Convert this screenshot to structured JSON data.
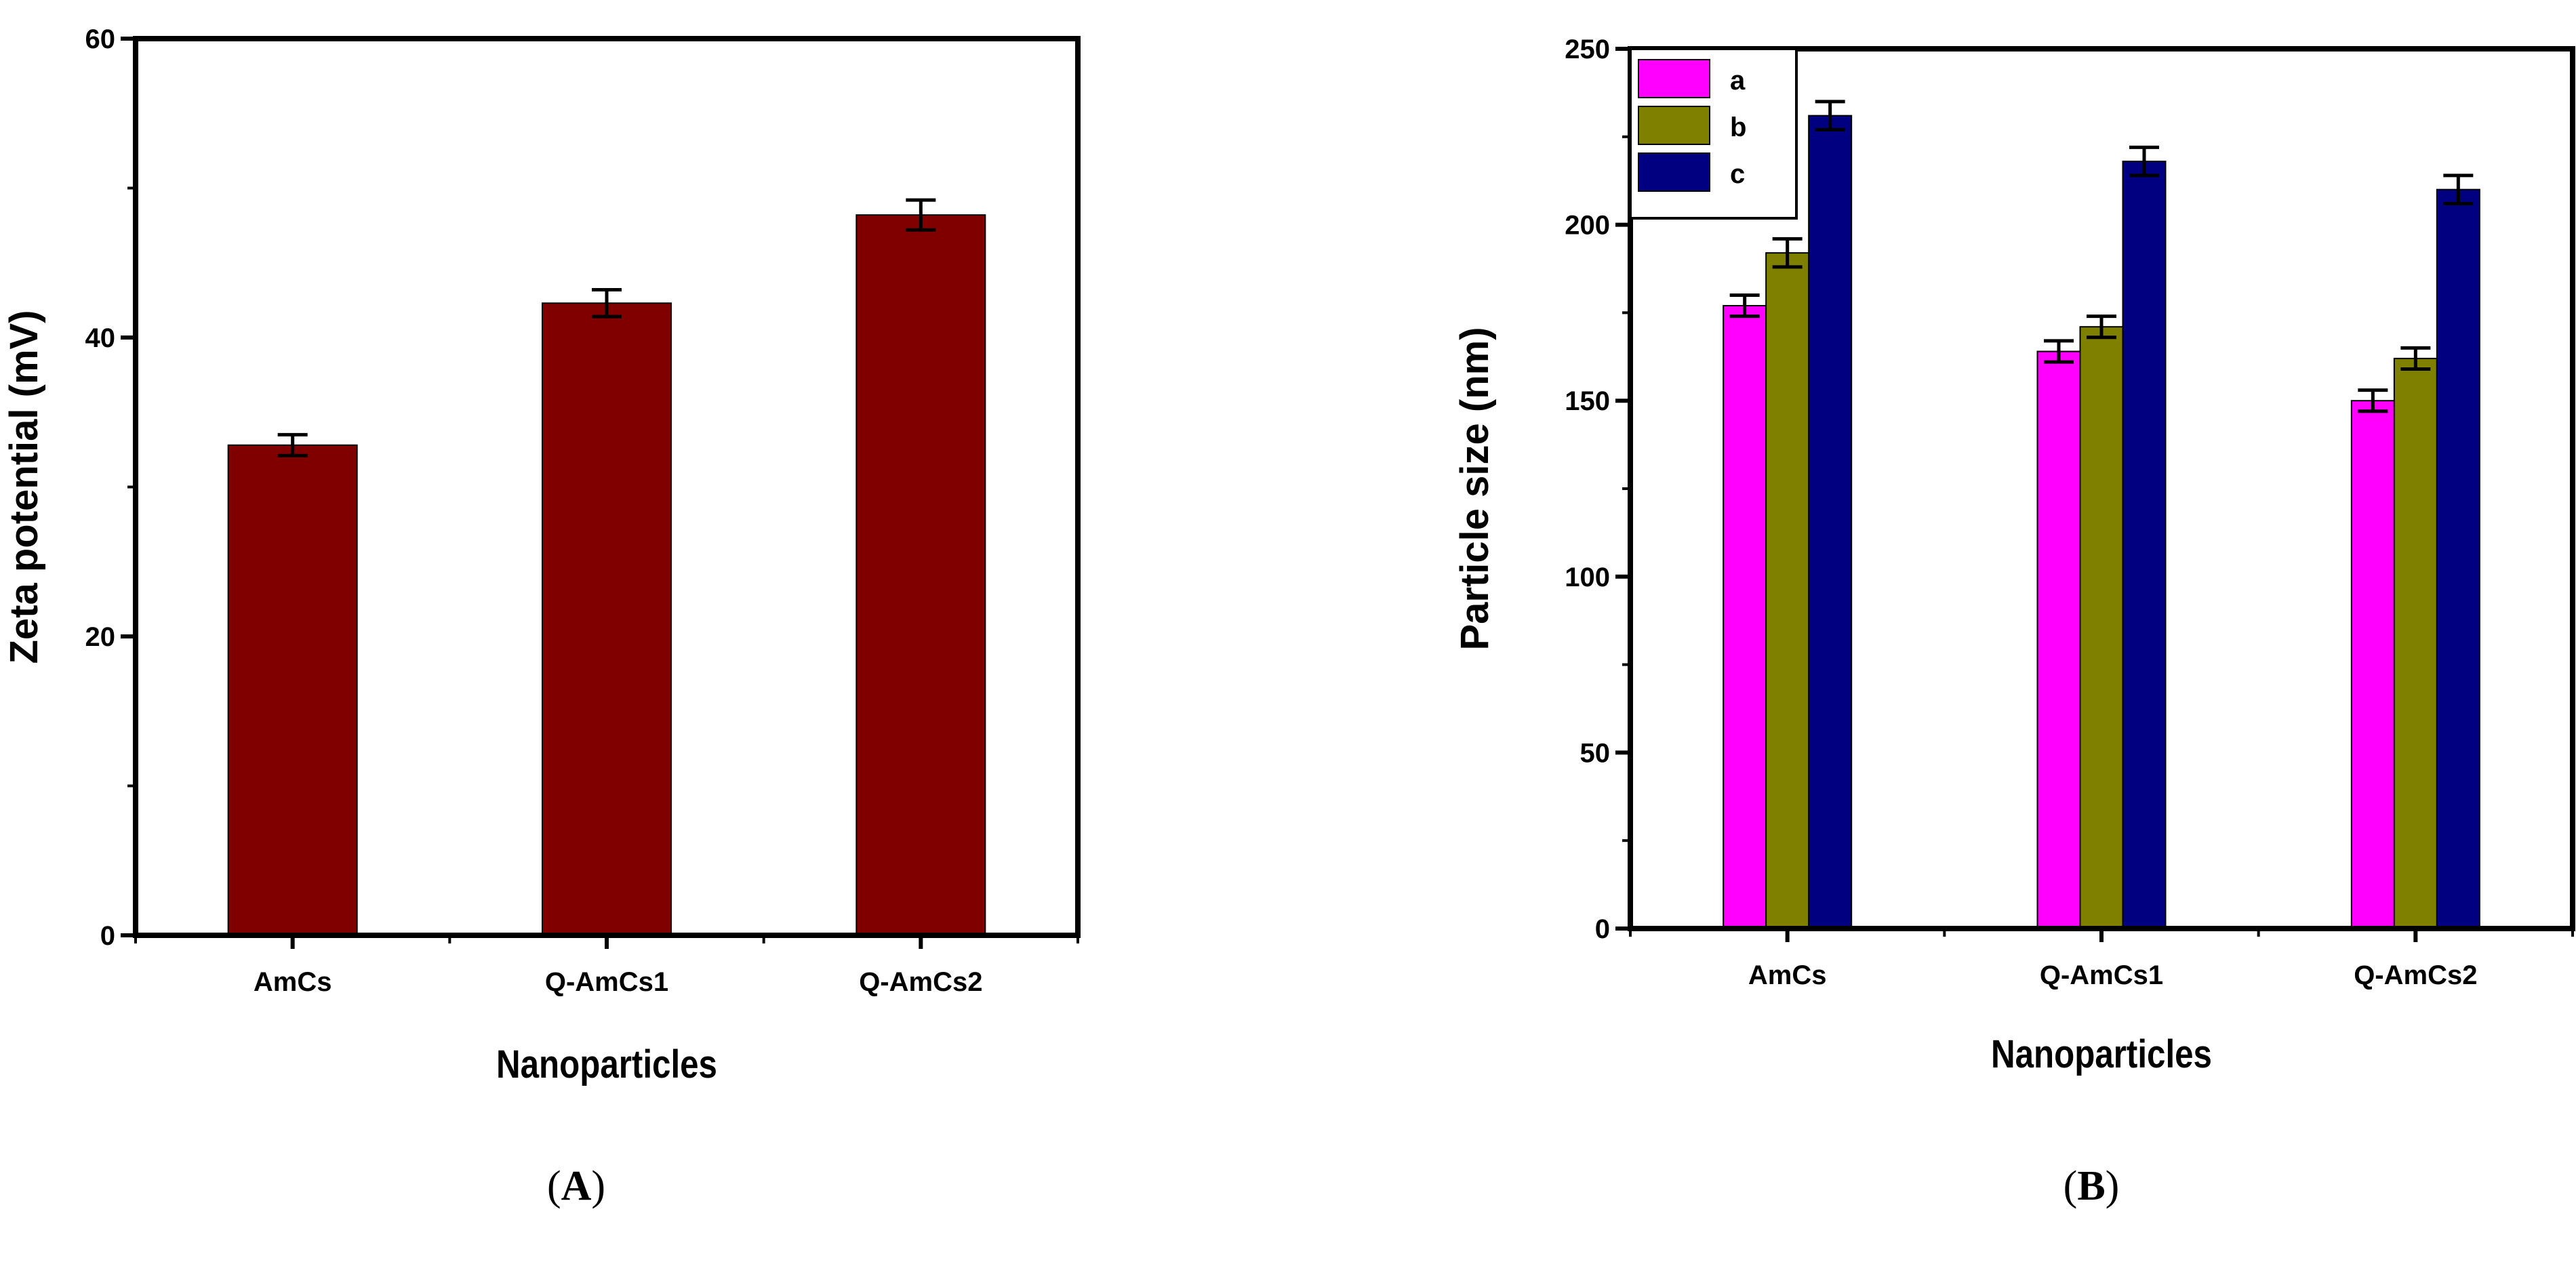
{
  "chart_data": [
    {
      "type": "bar",
      "panel_label": "(A)",
      "panel_label_bold": "A",
      "categories": [
        "AmCs",
        "Q-AmCs1",
        "Q-AmCs2"
      ],
      "series": [
        {
          "values": [
            32.8,
            42.3,
            48.2
          ],
          "errors": [
            0.7,
            0.9,
            1.0
          ],
          "color": "#800000"
        }
      ],
      "xlabel": "Nanoparticles",
      "ylabel": "Zeta potential (mV)",
      "ylim": [
        0,
        60
      ],
      "yticks": [
        0,
        20,
        40,
        60
      ],
      "grid": false
    },
    {
      "type": "bar",
      "panel_label": "(B)",
      "panel_label_bold": "B",
      "categories": [
        "AmCs",
        "Q-AmCs1",
        "Q-AmCs2"
      ],
      "series": [
        {
          "name": "a",
          "values": [
            177,
            164,
            150
          ],
          "errors": [
            3,
            3,
            3
          ],
          "color": "#ff00ff"
        },
        {
          "name": "b",
          "values": [
            192,
            171,
            162
          ],
          "errors": [
            4,
            3,
            3
          ],
          "color": "#808000"
        },
        {
          "name": "c",
          "values": [
            231,
            218,
            210
          ],
          "errors": [
            4,
            4,
            4
          ],
          "color": "#000080"
        }
      ],
      "xlabel": "Nanoparticles",
      "ylabel": "Particle size (nm)",
      "ylim": [
        0,
        250
      ],
      "yticks": [
        0,
        50,
        100,
        150,
        200,
        250
      ],
      "legend": "top-left",
      "grid": false
    }
  ]
}
